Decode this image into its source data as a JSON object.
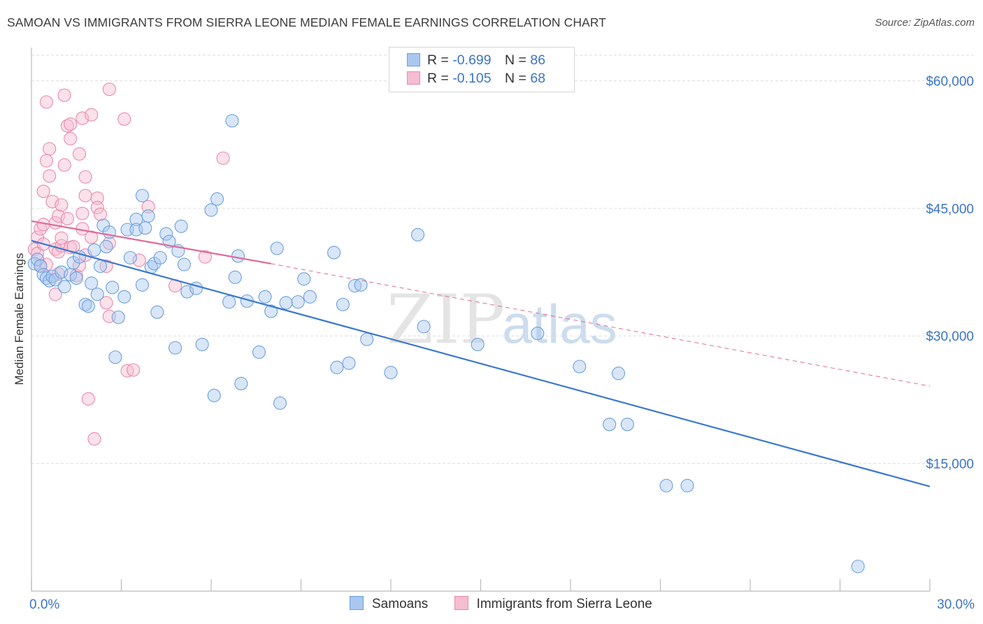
{
  "header": {
    "title": "SAMOAN VS IMMIGRANTS FROM SIERRA LEONE MEDIAN FEMALE EARNINGS CORRELATION CHART",
    "source": "Source: ZipAtlas.com"
  },
  "legend": {
    "samoans": {
      "r_label": "R =",
      "r_value": "-0.699",
      "n_label": "N =",
      "n_value": "86"
    },
    "sierra": {
      "r_label": "R =",
      "r_value": "-0.105",
      "n_label": "N =",
      "n_value": "68"
    }
  },
  "bottom_legend": {
    "samoans": "Samoans",
    "sierra": "Immigrants from Sierra Leone"
  },
  "watermark": {
    "zip": "ZIP",
    "atlas": "atlas"
  },
  "colors": {
    "blue_fill": "#a9c8f0",
    "blue_stroke": "#6d9fdf",
    "blue_line": "#3a78cf",
    "pink_fill": "#f6bcd0",
    "pink_stroke": "#e98aab",
    "pink_line": "#e06a96",
    "grid": "#dddddd",
    "tick_label": "#3b74c9"
  },
  "chart_data": {
    "type": "scatter",
    "title": "SAMOAN VS IMMIGRANTS FROM SIERRA LEONE MEDIAN FEMALE EARNINGS CORRELATION CHART",
    "ylabel": "Median Female Earnings",
    "xlabel": "",
    "xlim": [
      0,
      30
    ],
    "ylim": [
      0,
      63000
    ],
    "x_tick_labels": [
      "0.0%",
      "30.0%"
    ],
    "y_ticks": [
      15000,
      30000,
      45000,
      60000
    ],
    "y_tick_labels": [
      "$15,000",
      "$30,000",
      "$45,000",
      "$60,000"
    ],
    "grid": true,
    "series": [
      {
        "name": "Samoans",
        "r": -0.699,
        "n": 86,
        "trend": {
          "x": [
            0,
            30
          ],
          "y": [
            41200,
            12300
          ],
          "style": "solid"
        },
        "points": [
          [
            0.1,
            38500
          ],
          [
            0.2,
            39000
          ],
          [
            0.3,
            38200
          ],
          [
            0.4,
            37200
          ],
          [
            0.5,
            36800
          ],
          [
            0.6,
            36500
          ],
          [
            0.7,
            37000
          ],
          [
            0.8,
            36600
          ],
          [
            1.0,
            37500
          ],
          [
            1.1,
            35800
          ],
          [
            1.3,
            37200
          ],
          [
            1.4,
            38600
          ],
          [
            1.5,
            36800
          ],
          [
            1.6,
            39300
          ],
          [
            1.8,
            33700
          ],
          [
            1.9,
            33500
          ],
          [
            2.0,
            36200
          ],
          [
            2.1,
            40100
          ],
          [
            2.2,
            34900
          ],
          [
            2.3,
            38200
          ],
          [
            2.4,
            43000
          ],
          [
            2.5,
            40500
          ],
          [
            2.6,
            42200
          ],
          [
            2.7,
            35700
          ],
          [
            2.8,
            27500
          ],
          [
            2.9,
            32200
          ],
          [
            3.1,
            34600
          ],
          [
            3.2,
            42500
          ],
          [
            3.3,
            39200
          ],
          [
            3.5,
            43700
          ],
          [
            3.5,
            42500
          ],
          [
            3.7,
            46500
          ],
          [
            3.7,
            36000
          ],
          [
            3.8,
            42700
          ],
          [
            3.9,
            44100
          ],
          [
            4.0,
            38100
          ],
          [
            4.1,
            38500
          ],
          [
            4.2,
            32800
          ],
          [
            4.3,
            39200
          ],
          [
            4.5,
            42000
          ],
          [
            4.6,
            41100
          ],
          [
            4.8,
            28600
          ],
          [
            4.9,
            40000
          ],
          [
            5.0,
            42900
          ],
          [
            5.1,
            38400
          ],
          [
            5.2,
            35200
          ],
          [
            5.5,
            35600
          ],
          [
            5.7,
            29000
          ],
          [
            6.0,
            44800
          ],
          [
            6.1,
            23000
          ],
          [
            6.2,
            46100
          ],
          [
            6.6,
            34000
          ],
          [
            6.7,
            55300
          ],
          [
            6.8,
            36900
          ],
          [
            6.9,
            39400
          ],
          [
            7.0,
            24400
          ],
          [
            7.2,
            34100
          ],
          [
            7.6,
            28100
          ],
          [
            7.8,
            34600
          ],
          [
            8.0,
            32900
          ],
          [
            8.2,
            40300
          ],
          [
            8.3,
            22100
          ],
          [
            8.5,
            33900
          ],
          [
            8.9,
            34000
          ],
          [
            9.1,
            36700
          ],
          [
            9.3,
            34600
          ],
          [
            10.1,
            39800
          ],
          [
            10.2,
            26300
          ],
          [
            10.4,
            33700
          ],
          [
            10.6,
            26800
          ],
          [
            10.8,
            35900
          ],
          [
            11.0,
            36000
          ],
          [
            11.2,
            29600
          ],
          [
            12.0,
            25700
          ],
          [
            12.9,
            41900
          ],
          [
            13.1,
            31100
          ],
          [
            14.9,
            29000
          ],
          [
            16.9,
            30300
          ],
          [
            18.3,
            26400
          ],
          [
            19.3,
            19600
          ],
          [
            19.6,
            25600
          ],
          [
            19.9,
            19600
          ],
          [
            21.2,
            12400
          ],
          [
            21.9,
            12400
          ],
          [
            27.6,
            2900
          ]
        ]
      },
      {
        "name": "Immigrants from Sierra Leone",
        "r": -0.105,
        "n": 68,
        "trend": {
          "x": [
            0,
            8
          ],
          "y": [
            43500,
            38500
          ],
          "style": "solid",
          "dashed_extension_to": [
            30,
            24100
          ]
        },
        "points": [
          [
            0.1,
            40200
          ],
          [
            0.2,
            41600
          ],
          [
            0.2,
            39700
          ],
          [
            0.3,
            38300
          ],
          [
            0.3,
            42600
          ],
          [
            0.4,
            43100
          ],
          [
            0.4,
            40800
          ],
          [
            0.4,
            47000
          ],
          [
            0.5,
            38400
          ],
          [
            0.5,
            50600
          ],
          [
            0.5,
            57500
          ],
          [
            0.6,
            52000
          ],
          [
            0.6,
            48800
          ],
          [
            0.7,
            45800
          ],
          [
            0.8,
            40200
          ],
          [
            0.8,
            43300
          ],
          [
            0.8,
            34900
          ],
          [
            0.9,
            39900
          ],
          [
            0.9,
            44100
          ],
          [
            0.9,
            37300
          ],
          [
            1.0,
            40600
          ],
          [
            1.0,
            41500
          ],
          [
            1.0,
            45400
          ],
          [
            1.1,
            58300
          ],
          [
            1.1,
            50100
          ],
          [
            1.2,
            54700
          ],
          [
            1.2,
            43800
          ],
          [
            1.3,
            53200
          ],
          [
            1.3,
            54900
          ],
          [
            1.3,
            40400
          ],
          [
            1.4,
            40500
          ],
          [
            1.5,
            37100
          ],
          [
            1.6,
            51400
          ],
          [
            1.6,
            38300
          ],
          [
            1.7,
            55600
          ],
          [
            1.7,
            42600
          ],
          [
            1.7,
            44400
          ],
          [
            1.8,
            48700
          ],
          [
            1.8,
            46500
          ],
          [
            1.8,
            39500
          ],
          [
            1.9,
            22600
          ],
          [
            2.0,
            41600
          ],
          [
            2.0,
            56000
          ],
          [
            2.1,
            17900
          ],
          [
            2.2,
            46200
          ],
          [
            2.2,
            45100
          ],
          [
            2.3,
            44300
          ],
          [
            2.5,
            33900
          ],
          [
            2.5,
            38200
          ],
          [
            2.6,
            40900
          ],
          [
            2.6,
            32300
          ],
          [
            2.6,
            59000
          ],
          [
            3.1,
            55500
          ],
          [
            3.2,
            25900
          ],
          [
            3.4,
            26000
          ],
          [
            3.6,
            38900
          ],
          [
            3.9,
            45200
          ],
          [
            4.8,
            35900
          ],
          [
            5.8,
            39300
          ],
          [
            6.4,
            50900
          ]
        ]
      }
    ]
  }
}
